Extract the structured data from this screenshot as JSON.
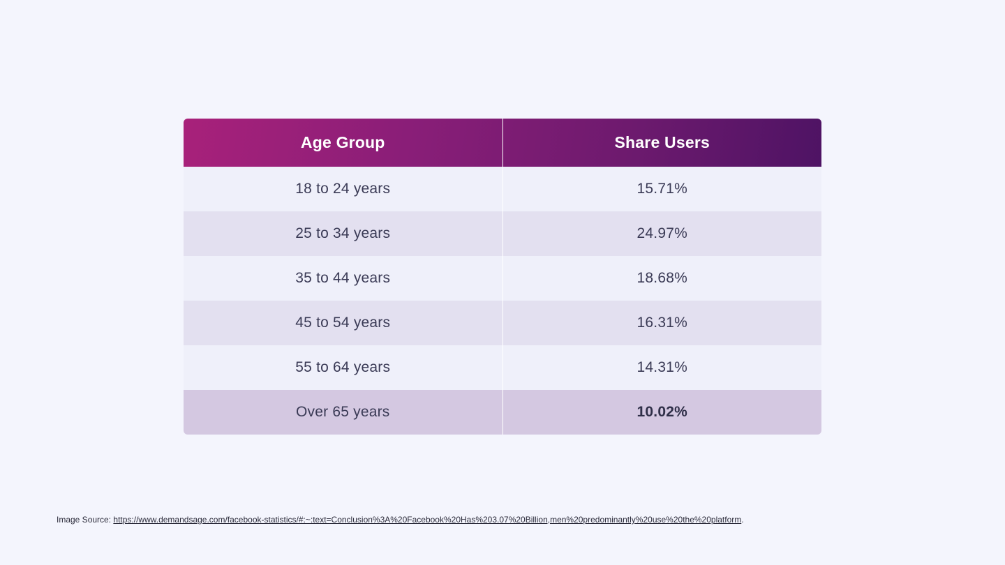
{
  "chart_data": {
    "type": "table",
    "columns": [
      "Age Group",
      "Share Users"
    ],
    "rows": [
      [
        "18 to 24 years",
        "15.71%"
      ],
      [
        "25 to 34 years",
        "24.97%"
      ],
      [
        "35 to 44 years",
        "18.68%"
      ],
      [
        "45 to 54 years",
        "16.31%"
      ],
      [
        "55 to 64 years",
        "14.31%"
      ],
      [
        "Over 65 years",
        "10.02%"
      ]
    ]
  },
  "source": {
    "label": "Image Source:",
    "url": "https://www.demandsage.com/facebook-statistics/#:~:text=Conclusion%3A%20Facebook%20Has%203.07%20Billion,men%20predominantly%20use%20the%20platform",
    "trailing": "."
  },
  "colors": {
    "background": "#f4f5fd",
    "header_gradient_start": "#a8217a",
    "header_gradient_end": "#4e1364",
    "row_light": "#eff0fa",
    "row_mid": "#e3e0f0",
    "row_highlight": "#d4c8e1"
  }
}
